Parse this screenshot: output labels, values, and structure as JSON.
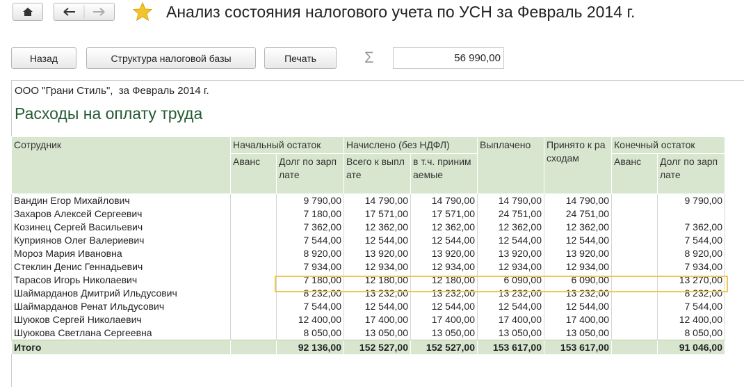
{
  "header": {
    "title": "Анализ состояния налогового учета по УСН за Февраль 2014 г."
  },
  "toolbar": {
    "buttons": [
      "Назад",
      "Структура налоговой базы",
      "Печать"
    ],
    "sigma": "Σ",
    "sum": "56 990,00"
  },
  "report": {
    "company": "ООО \"Грани Стиль\",  за Февраль 2014 г.",
    "section": "Расходы на оплату труда",
    "table": {
      "head": [
        "Сотрудник",
        "Начальный остаток",
        "Начислено (без НДФЛ)",
        "Выплачено",
        "Принято к расходам",
        "Конечный остаток"
      ],
      "subhead": [
        "Аванс",
        "Долг по зарплате",
        "Всего к выплате",
        "в т.ч. принимаемые",
        "Аванс",
        "Долг по зарплате"
      ],
      "rows": [
        [
          "Вандин Егор Михайлович",
          null,
          "9 790,00",
          "14 790,00",
          "14 790,00",
          "14 790,00",
          "14 790,00",
          null,
          "9 790,00"
        ],
        [
          "Захаров Алексей Сергеевич",
          null,
          "7 180,00",
          "17 571,00",
          "17 571,00",
          "24 751,00",
          "24 751,00",
          null,
          null
        ],
        [
          "Козинец Сергей Васильевич",
          null,
          "7 362,00",
          "12 362,00",
          "12 362,00",
          "12 362,00",
          "12 362,00",
          null,
          "7 362,00"
        ],
        [
          "Куприянов Олег Валериевич",
          null,
          "7 544,00",
          "12 544,00",
          "12 544,00",
          "12 544,00",
          "12 544,00",
          null,
          "7 544,00"
        ],
        [
          "Мороз Мария Ивановна",
          null,
          "8 920,00",
          "13 920,00",
          "13 920,00",
          "13 920,00",
          "13 920,00",
          null,
          "8 920,00"
        ],
        [
          "Стеклин Денис Геннадьевич",
          null,
          "7 934,00",
          "12 934,00",
          "12 934,00",
          "12 934,00",
          "12 934,00",
          null,
          "7 934,00"
        ],
        [
          "Тарасов Игорь Николаевич",
          null,
          "7 180,00",
          "12 180,00",
          "12 180,00",
          "6 090,00",
          "6 090,00",
          null,
          "13 270,00"
        ],
        [
          "Шаймарданов Дмитрий Ильдусович",
          null,
          "8 232,00",
          "13 232,00",
          "13 232,00",
          "13 232,00",
          "13 232,00",
          null,
          "8 232,00"
        ],
        [
          "Шаймарданов Ренат Ильдусович",
          null,
          "7 544,00",
          "12 544,00",
          "12 544,00",
          "12 544,00",
          "12 544,00",
          null,
          "7 544,00"
        ],
        [
          "Шуюков Сергей Николаевич",
          null,
          "12 400,00",
          "17 400,00",
          "17 400,00",
          "17 400,00",
          "17 400,00",
          null,
          "12 400,00"
        ],
        [
          "Шуюкова Светлана Сергеевна",
          null,
          "8 050,00",
          "13 050,00",
          "13 050,00",
          "13 050,00",
          "13 050,00",
          null,
          "8 050,00"
        ]
      ],
      "total": [
        "Итого",
        null,
        "92 136,00",
        "152 527,00",
        "152 527,00",
        "153 617,00",
        "153 617,00",
        null,
        "91 046,00"
      ]
    }
  }
}
